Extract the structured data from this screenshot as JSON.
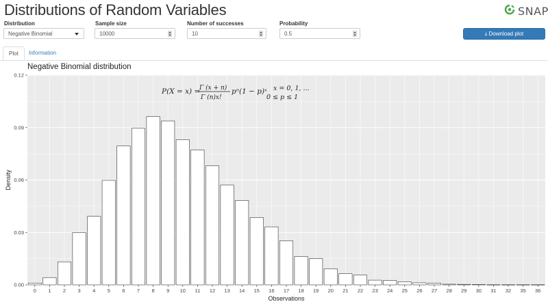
{
  "app": {
    "title": "Distributions of Random Variables",
    "logo_text": "SNAP"
  },
  "controls": {
    "distribution": {
      "label": "Distribution",
      "value": "Negative Binomial"
    },
    "sample_size": {
      "label": "Sample size",
      "value": "10000"
    },
    "successes": {
      "label": "Number of successes",
      "value": "10"
    },
    "probability": {
      "label": "Probability",
      "value": "0.5"
    },
    "download_label": "Download plot"
  },
  "tabs": [
    {
      "label": "Plot",
      "active": true
    },
    {
      "label": "Information",
      "active": false
    }
  ],
  "colors": {
    "panel_bg": "#ebebeb",
    "grid": "#ffffff",
    "bar_fill": "#ffffff",
    "bar_stroke": "#333333",
    "accent": "#337ab7"
  },
  "formula": {
    "lhs": "P(X = x) =",
    "numerator": "Γ  (x + n)",
    "denominator": "Γ  (n)x!",
    "rhs": "pⁿ(1 − p)ˣ",
    "support": "x = 0, 1, ...",
    "param": "0 ≤ p ≤ 1"
  },
  "chart_data": {
    "type": "bar",
    "title": "Negative Binomial distribution",
    "xlabel": "Observations",
    "ylabel": "Density",
    "ylim": [
      0,
      0.12
    ],
    "yticks": [
      "0.00",
      "0.03",
      "0.06",
      "0.09",
      "0.12"
    ],
    "grid": true,
    "categories": [
      "0",
      "1",
      "2",
      "3",
      "4",
      "5",
      "6",
      "7",
      "8",
      "9",
      "10",
      "11",
      "12",
      "13",
      "14",
      "15",
      "16",
      "17",
      "18",
      "19",
      "20",
      "21",
      "22",
      "23",
      "24",
      "25",
      "26",
      "27",
      "28",
      "29",
      "30",
      "31",
      "32",
      "35",
      "36"
    ],
    "values": [
      0.001,
      0.0042,
      0.0132,
      0.0299,
      0.0392,
      0.0598,
      0.0795,
      0.0896,
      0.0963,
      0.0938,
      0.0831,
      0.0772,
      0.0681,
      0.0571,
      0.0483,
      0.0385,
      0.0332,
      0.0252,
      0.0162,
      0.015,
      0.0092,
      0.0064,
      0.0056,
      0.0027,
      0.0025,
      0.0018,
      0.0012,
      0.0009,
      0.0004,
      0.0003,
      0.0002,
      0.0001,
      0.0001,
      0.0001,
      0.0001
    ]
  }
}
